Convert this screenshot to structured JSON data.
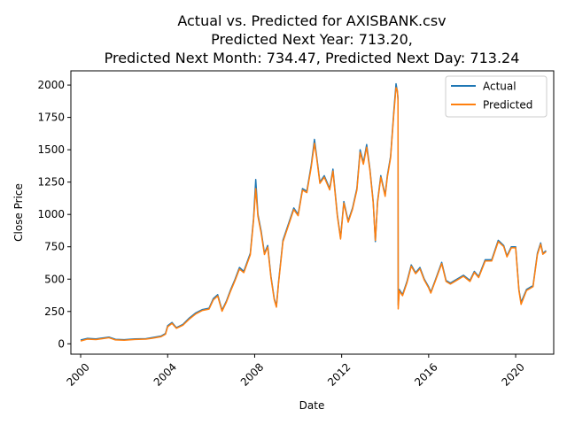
{
  "chart_data": {
    "type": "line",
    "title_lines": [
      "Actual vs. Predicted for AXISBANK.csv",
      "Predicted Next Year: 713.20,",
      "Predicted Next Month: 734.47, Predicted Next Day: 713.24"
    ],
    "xlabel": "Date",
    "ylabel": "Close Price",
    "xlim": [
      1999.55,
      2021.75
    ],
    "ylim": [
      -80,
      2110
    ],
    "x_ticks": [
      2000,
      2004,
      2008,
      2012,
      2016,
      2020
    ],
    "y_ticks": [
      0,
      250,
      500,
      750,
      1000,
      1250,
      1500,
      1750,
      2000
    ],
    "legend": {
      "position": "top-right",
      "entries": [
        "Actual",
        "Predicted"
      ]
    },
    "colors": {
      "Actual": "#1f77b4",
      "Predicted": "#ff7f0e"
    },
    "series": [
      {
        "name": "Actual",
        "points": [
          [
            2000.0,
            30
          ],
          [
            2000.3,
            42
          ],
          [
            2000.7,
            38
          ],
          [
            2001.0,
            45
          ],
          [
            2001.3,
            52
          ],
          [
            2001.6,
            35
          ],
          [
            2002.0,
            32
          ],
          [
            2002.5,
            38
          ],
          [
            2003.0,
            40
          ],
          [
            2003.3,
            48
          ],
          [
            2003.7,
            60
          ],
          [
            2003.9,
            80
          ],
          [
            2004.0,
            140
          ],
          [
            2004.2,
            165
          ],
          [
            2004.4,
            125
          ],
          [
            2004.7,
            150
          ],
          [
            2005.0,
            200
          ],
          [
            2005.3,
            240
          ],
          [
            2005.6,
            265
          ],
          [
            2005.9,
            275
          ],
          [
            2006.1,
            350
          ],
          [
            2006.3,
            380
          ],
          [
            2006.5,
            260
          ],
          [
            2006.7,
            330
          ],
          [
            2006.9,
            420
          ],
          [
            2007.1,
            500
          ],
          [
            2007.3,
            590
          ],
          [
            2007.5,
            560
          ],
          [
            2007.8,
            700
          ],
          [
            2007.95,
            970
          ],
          [
            2008.05,
            1270
          ],
          [
            2008.15,
            1000
          ],
          [
            2008.3,
            870
          ],
          [
            2008.45,
            700
          ],
          [
            2008.6,
            760
          ],
          [
            2008.75,
            520
          ],
          [
            2008.9,
            350
          ],
          [
            2009.0,
            290
          ],
          [
            2009.1,
            480
          ],
          [
            2009.3,
            800
          ],
          [
            2009.6,
            950
          ],
          [
            2009.8,
            1050
          ],
          [
            2010.0,
            1000
          ],
          [
            2010.2,
            1200
          ],
          [
            2010.4,
            1180
          ],
          [
            2010.6,
            1380
          ],
          [
            2010.75,
            1580
          ],
          [
            2010.85,
            1450
          ],
          [
            2011.0,
            1250
          ],
          [
            2011.2,
            1300
          ],
          [
            2011.45,
            1200
          ],
          [
            2011.6,
            1350
          ],
          [
            2011.8,
            1000
          ],
          [
            2011.95,
            820
          ],
          [
            2012.1,
            1100
          ],
          [
            2012.3,
            950
          ],
          [
            2012.5,
            1050
          ],
          [
            2012.7,
            1200
          ],
          [
            2012.85,
            1500
          ],
          [
            2013.0,
            1400
          ],
          [
            2013.15,
            1540
          ],
          [
            2013.3,
            1350
          ],
          [
            2013.45,
            1100
          ],
          [
            2013.55,
            790
          ],
          [
            2013.65,
            1100
          ],
          [
            2013.8,
            1300
          ],
          [
            2014.0,
            1150
          ],
          [
            2014.1,
            1300
          ],
          [
            2014.25,
            1450
          ],
          [
            2014.4,
            1800
          ],
          [
            2014.5,
            2010
          ],
          [
            2014.56,
            1950
          ],
          [
            2014.59,
            1900
          ],
          [
            2014.6,
            300
          ],
          [
            2014.65,
            420
          ],
          [
            2014.8,
            380
          ],
          [
            2015.0,
            480
          ],
          [
            2015.2,
            610
          ],
          [
            2015.4,
            550
          ],
          [
            2015.6,
            590
          ],
          [
            2015.8,
            500
          ],
          [
            2016.0,
            440
          ],
          [
            2016.1,
            400
          ],
          [
            2016.3,
            490
          ],
          [
            2016.6,
            630
          ],
          [
            2016.8,
            490
          ],
          [
            2017.0,
            470
          ],
          [
            2017.3,
            500
          ],
          [
            2017.6,
            530
          ],
          [
            2017.9,
            490
          ],
          [
            2018.1,
            560
          ],
          [
            2018.3,
            520
          ],
          [
            2018.6,
            650
          ],
          [
            2018.9,
            650
          ],
          [
            2019.2,
            800
          ],
          [
            2019.45,
            760
          ],
          [
            2019.6,
            680
          ],
          [
            2019.8,
            750
          ],
          [
            2020.0,
            750
          ],
          [
            2020.15,
            420
          ],
          [
            2020.25,
            320
          ],
          [
            2020.5,
            420
          ],
          [
            2020.8,
            450
          ],
          [
            2021.0,
            700
          ],
          [
            2021.15,
            780
          ],
          [
            2021.25,
            700
          ],
          [
            2021.4,
            720
          ]
        ]
      },
      {
        "name": "Predicted",
        "points": [
          [
            2000.0,
            22
          ],
          [
            2000.3,
            36
          ],
          [
            2000.7,
            33
          ],
          [
            2001.0,
            40
          ],
          [
            2001.3,
            47
          ],
          [
            2001.6,
            30
          ],
          [
            2002.0,
            28
          ],
          [
            2002.5,
            34
          ],
          [
            2003.0,
            36
          ],
          [
            2003.3,
            43
          ],
          [
            2003.7,
            55
          ],
          [
            2003.9,
            74
          ],
          [
            2004.0,
            132
          ],
          [
            2004.2,
            158
          ],
          [
            2004.4,
            120
          ],
          [
            2004.7,
            144
          ],
          [
            2005.0,
            192
          ],
          [
            2005.3,
            232
          ],
          [
            2005.6,
            258
          ],
          [
            2005.9,
            268
          ],
          [
            2006.1,
            340
          ],
          [
            2006.3,
            370
          ],
          [
            2006.5,
            252
          ],
          [
            2006.7,
            322
          ],
          [
            2006.9,
            410
          ],
          [
            2007.1,
            490
          ],
          [
            2007.3,
            578
          ],
          [
            2007.5,
            550
          ],
          [
            2007.8,
            688
          ],
          [
            2007.95,
            955
          ],
          [
            2008.05,
            1200
          ],
          [
            2008.15,
            985
          ],
          [
            2008.3,
            855
          ],
          [
            2008.45,
            690
          ],
          [
            2008.6,
            748
          ],
          [
            2008.75,
            510
          ],
          [
            2008.9,
            342
          ],
          [
            2009.0,
            283
          ],
          [
            2009.1,
            470
          ],
          [
            2009.3,
            788
          ],
          [
            2009.6,
            938
          ],
          [
            2009.8,
            1038
          ],
          [
            2010.0,
            990
          ],
          [
            2010.2,
            1188
          ],
          [
            2010.4,
            1168
          ],
          [
            2010.6,
            1365
          ],
          [
            2010.75,
            1550
          ],
          [
            2010.85,
            1438
          ],
          [
            2011.0,
            1240
          ],
          [
            2011.2,
            1288
          ],
          [
            2011.45,
            1190
          ],
          [
            2011.6,
            1335
          ],
          [
            2011.8,
            990
          ],
          [
            2011.95,
            810
          ],
          [
            2012.1,
            1088
          ],
          [
            2012.3,
            940
          ],
          [
            2012.5,
            1040
          ],
          [
            2012.7,
            1188
          ],
          [
            2012.85,
            1480
          ],
          [
            2013.0,
            1388
          ],
          [
            2013.15,
            1520
          ],
          [
            2013.3,
            1340
          ],
          [
            2013.45,
            1090
          ],
          [
            2013.55,
            800
          ],
          [
            2013.65,
            1090
          ],
          [
            2013.8,
            1288
          ],
          [
            2014.0,
            1140
          ],
          [
            2014.1,
            1288
          ],
          [
            2014.25,
            1438
          ],
          [
            2014.4,
            1780
          ],
          [
            2014.5,
            1980
          ],
          [
            2014.56,
            1960
          ],
          [
            2014.59,
            1880
          ],
          [
            2014.6,
            270
          ],
          [
            2014.65,
            410
          ],
          [
            2014.8,
            372
          ],
          [
            2015.0,
            470
          ],
          [
            2015.2,
            600
          ],
          [
            2015.4,
            542
          ],
          [
            2015.6,
            580
          ],
          [
            2015.8,
            492
          ],
          [
            2016.0,
            432
          ],
          [
            2016.1,
            392
          ],
          [
            2016.3,
            482
          ],
          [
            2016.6,
            620
          ],
          [
            2016.8,
            482
          ],
          [
            2017.0,
            462
          ],
          [
            2017.3,
            492
          ],
          [
            2017.6,
            522
          ],
          [
            2017.9,
            482
          ],
          [
            2018.1,
            552
          ],
          [
            2018.3,
            512
          ],
          [
            2018.6,
            640
          ],
          [
            2018.9,
            640
          ],
          [
            2019.2,
            790
          ],
          [
            2019.45,
            752
          ],
          [
            2019.6,
            672
          ],
          [
            2019.8,
            742
          ],
          [
            2020.0,
            742
          ],
          [
            2020.15,
            412
          ],
          [
            2020.25,
            305
          ],
          [
            2020.5,
            412
          ],
          [
            2020.8,
            442
          ],
          [
            2021.0,
            690
          ],
          [
            2021.15,
            770
          ],
          [
            2021.25,
            692
          ],
          [
            2021.4,
            713
          ]
        ]
      }
    ]
  }
}
